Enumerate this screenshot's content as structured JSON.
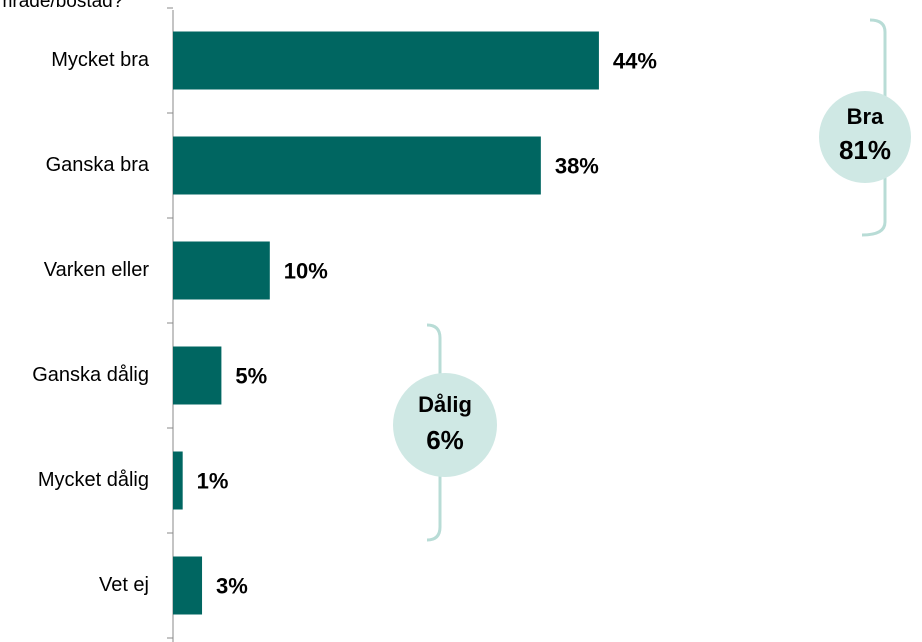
{
  "chart_data": {
    "type": "bar",
    "orientation": "horizontal",
    "title": "område/bostad?",
    "categories": [
      "Mycket bra",
      "Ganska bra",
      "Varken eller",
      "Ganska dålig",
      "Mycket dålig",
      "Vet ej"
    ],
    "values": [
      44,
      38,
      10,
      5,
      1,
      3
    ],
    "value_labels": [
      "44%",
      "38%",
      "10%",
      "5%",
      "1%",
      "3%"
    ],
    "color": "#006661",
    "xlim": [
      0,
      50
    ],
    "groups": [
      {
        "name": "Bra",
        "label": "81%"
      },
      {
        "name": "Dålig",
        "label": "6%"
      }
    ]
  }
}
